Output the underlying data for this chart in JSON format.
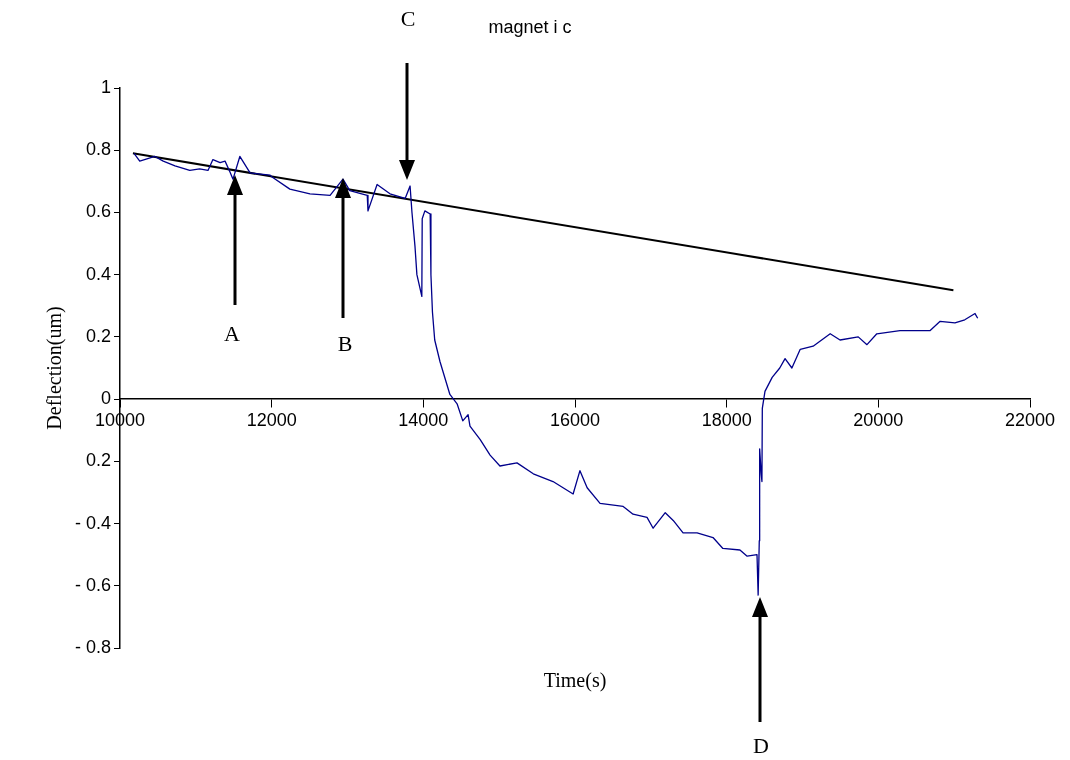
{
  "chart_data": {
    "type": "line",
    "xlabel": "Time(s)",
    "ylabel": "Deflection(um)",
    "xlim": [
      10000,
      22000
    ],
    "xticks": [
      10000,
      12000,
      14000,
      16000,
      18000,
      20000,
      22000
    ],
    "ylim": [
      -0.8,
      1
    ],
    "yticks": [
      {
        "value": -0.8,
        "label": "- 0.8"
      },
      {
        "value": -0.6,
        "label": "- 0.6"
      },
      {
        "value": -0.4,
        "label": "- 0.4"
      },
      {
        "value": -0.2,
        "label": "0.2"
      },
      0,
      0.2,
      0.4,
      0.6,
      0.8,
      1
    ],
    "grid": false,
    "legend": false,
    "marker": "none",
    "line_style": "solid",
    "series": [
      {
        "color": "#00008b",
        "x": [
          10185,
          10260,
          10460,
          10570,
          10725,
          10920,
          11050,
          11160,
          11225,
          11320,
          11385,
          11450,
          11490,
          11580,
          11715,
          11980,
          12000,
          12240,
          12505,
          12770,
          12940,
          13030,
          13260,
          13270,
          13390,
          13560,
          13760,
          13825,
          13850,
          13890,
          13915,
          13980,
          13985,
          14020,
          14090,
          14100,
          14120,
          14150,
          14220,
          14350,
          14445,
          14520,
          14590,
          14615,
          14750,
          14880,
          15010,
          15235,
          15450,
          15710,
          15975,
          16065,
          16160,
          16330,
          16635,
          16765,
          16950,
          17030,
          17190,
          17295,
          17425,
          17610,
          17820,
          17950,
          18175,
          18270,
          18400,
          18415,
          18430,
          18435,
          18455,
          18465,
          18470,
          18505,
          18600,
          18700,
          18770,
          18860,
          18970,
          19140,
          19365,
          19495,
          19735,
          19850,
          19980,
          20285,
          20680,
          20815,
          21010,
          21140,
          21275,
          21310
        ],
        "values": [
          0.79,
          0.765,
          0.78,
          0.765,
          0.75,
          0.735,
          0.74,
          0.735,
          0.77,
          0.76,
          0.765,
          0.73,
          0.707,
          0.78,
          0.727,
          0.72,
          0.715,
          0.675,
          0.66,
          0.655,
          0.707,
          0.67,
          0.655,
          0.605,
          0.69,
          0.66,
          0.645,
          0.685,
          0.6,
          0.49,
          0.4,
          0.33,
          0.58,
          0.605,
          0.595,
          0.4,
          0.28,
          0.19,
          0.12,
          0.015,
          -0.015,
          -0.07,
          -0.05,
          -0.087,
          -0.13,
          -0.18,
          -0.215,
          -0.205,
          -0.24,
          -0.265,
          -0.305,
          -0.23,
          -0.285,
          -0.335,
          -0.345,
          -0.37,
          -0.38,
          -0.415,
          -0.365,
          -0.39,
          -0.43,
          -0.43,
          -0.445,
          -0.48,
          -0.485,
          -0.505,
          -0.5,
          -0.63,
          -0.455,
          -0.16,
          -0.24,
          -0.265,
          -0.03,
          0.025,
          0.07,
          0.1,
          0.13,
          0.1,
          0.16,
          0.17,
          0.21,
          0.19,
          0.2,
          0.175,
          0.21,
          0.22,
          0.22,
          0.25,
          0.245,
          0.255,
          0.275,
          0.26
        ]
      },
      {
        "type": "line",
        "color": "#000000",
        "x": [
          10170,
          20990
        ],
        "values": [
          0.79,
          0.35
        ]
      }
    ],
    "annotations": [
      "A",
      "B",
      "C",
      "D",
      "magnet i c"
    ]
  }
}
